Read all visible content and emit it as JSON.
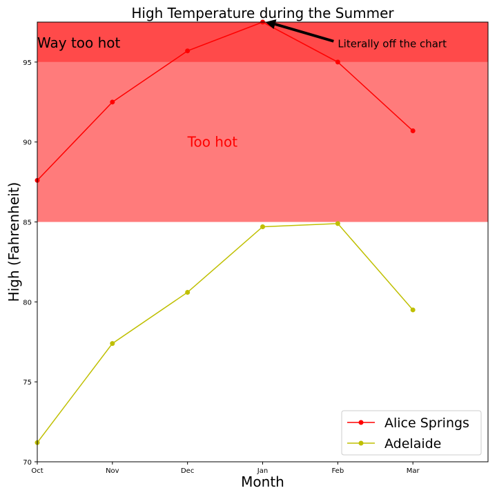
{
  "chart_data": {
    "type": "line",
    "title": "High Temperature during the Summer",
    "xlabel": "Month",
    "ylabel": "High (Fahrenheit)",
    "categories": [
      "Oct",
      "Nov",
      "Dec",
      "Jan",
      "Feb",
      "Mar"
    ],
    "xlim": [
      0,
      6
    ],
    "ylim": [
      70,
      97.5
    ],
    "yticks": [
      70,
      75,
      80,
      85,
      90,
      95
    ],
    "grid": false,
    "legend_position": "bottom-right",
    "series": [
      {
        "name": "Alice Springs",
        "color": "#ff0000",
        "values": [
          87.6,
          92.5,
          95.7,
          97.5,
          95.0,
          90.7
        ]
      },
      {
        "name": "Adelaide",
        "color": "#bfbf00",
        "values": [
          71.2,
          77.4,
          80.6,
          84.7,
          84.9,
          79.5
        ]
      }
    ],
    "bands": [
      {
        "label": "Too hot",
        "from": 85,
        "to": 95,
        "color": "#ff7b7b",
        "label_color": "#ff0000",
        "label_anchor": [
          2,
          90
        ]
      },
      {
        "label": "Way too hot",
        "from": 95,
        "to": 97.5,
        "color": "#ff4a4a",
        "label_color": "#000000",
        "label_anchor": [
          0,
          96.2
        ]
      }
    ],
    "annotation": {
      "text": "Literally off the chart",
      "point": [
        3,
        97.5
      ],
      "text_position": [
        4,
        96.0
      ],
      "arrow_color": "#000000"
    }
  }
}
